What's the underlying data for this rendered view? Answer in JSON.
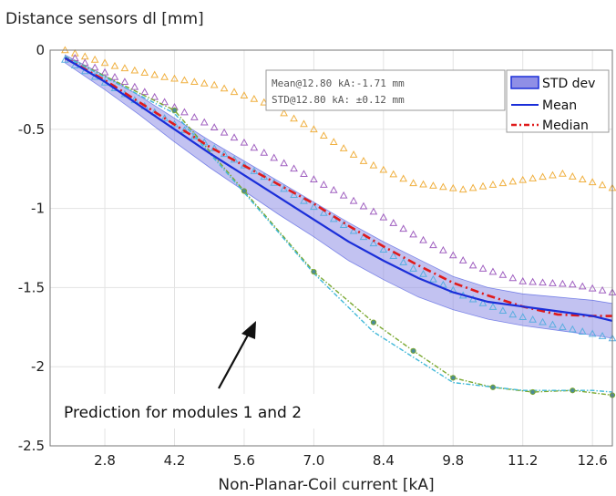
{
  "chart_data": {
    "type": "line",
    "title": "Distance sensors dl [mm]",
    "xlabel": "Non-Planar-Coil current [kA]",
    "ylabel": "",
    "xlim": [
      1.7,
      13.0
    ],
    "ylim": [
      -2.5,
      0
    ],
    "xticks": [
      2.8,
      4.2,
      5.6,
      7.0,
      8.4,
      9.8,
      11.2,
      12.6
    ],
    "xtick_labels": [
      "2.8",
      "4.2",
      "5.6",
      "7.0",
      "8.4",
      "9.8",
      "11.2",
      "12.6"
    ],
    "yticks": [
      0,
      -0.5,
      -1,
      -1.5,
      -2,
      -2.5
    ],
    "ytick_labels": [
      "0",
      "-0.5",
      "-1",
      "-1.5",
      "-2",
      "-2.5"
    ],
    "grid": true,
    "legend_position": "top-right",
    "stats_box": {
      "line1": "Mean@12.80 kA:-1.71 mm",
      "line2": "STD@12.80 kA: ±0.12 mm"
    },
    "annotation": "Prediction for modules 1 and 2",
    "legend": {
      "std": "STD dev",
      "mean": "Mean",
      "median": "Median"
    },
    "colors": {
      "band": "#8f8fe6",
      "mean": "#1a2ed9",
      "median": "#e01a1a",
      "orange": "#f0b040",
      "purple": "#a060c0",
      "lightblue": "#5aaee0",
      "green": "#7aa830",
      "cyan": "#40b8d8"
    },
    "series": [
      {
        "key": "std_band",
        "x": [
          2.0,
          2.8,
          3.5,
          4.2,
          4.9,
          5.6,
          6.3,
          7.0,
          7.7,
          8.4,
          9.1,
          9.8,
          10.5,
          11.2,
          11.9,
          12.6,
          13.0
        ],
        "upper": [
          -0.03,
          -0.16,
          -0.29,
          -0.43,
          -0.57,
          -0.7,
          -0.83,
          -0.96,
          -1.09,
          -1.21,
          -1.32,
          -1.43,
          -1.5,
          -1.54,
          -1.56,
          -1.58,
          -1.6
        ],
        "lower": [
          -0.08,
          -0.25,
          -0.41,
          -0.58,
          -0.74,
          -0.89,
          -1.04,
          -1.18,
          -1.33,
          -1.45,
          -1.56,
          -1.64,
          -1.7,
          -1.74,
          -1.77,
          -1.8,
          -1.82
        ]
      },
      {
        "key": "mean",
        "x": [
          2.0,
          2.8,
          3.5,
          4.2,
          4.9,
          5.6,
          6.3,
          7.0,
          7.7,
          8.4,
          9.1,
          9.8,
          10.5,
          11.2,
          11.9,
          12.6,
          13.0
        ],
        "y": [
          -0.05,
          -0.2,
          -0.35,
          -0.5,
          -0.65,
          -0.79,
          -0.93,
          -1.07,
          -1.21,
          -1.33,
          -1.44,
          -1.53,
          -1.59,
          -1.62,
          -1.65,
          -1.68,
          -1.71
        ]
      },
      {
        "key": "median",
        "x": [
          2.0,
          2.8,
          3.5,
          4.2,
          4.9,
          5.6,
          6.3,
          7.0,
          7.7,
          8.4,
          9.1,
          9.8,
          10.5,
          11.2,
          11.9,
          12.6,
          13.0
        ],
        "y": [
          -0.05,
          -0.19,
          -0.33,
          -0.47,
          -0.61,
          -0.73,
          -0.85,
          -0.97,
          -1.11,
          -1.24,
          -1.36,
          -1.47,
          -1.55,
          -1.62,
          -1.67,
          -1.68,
          -1.68
        ]
      },
      {
        "key": "orange",
        "x": [
          2.0,
          3.0,
          4.0,
          5.0,
          6.0,
          7.0,
          8.0,
          9.0,
          10.0,
          11.0,
          12.0,
          13.0
        ],
        "y": [
          0.0,
          -0.1,
          -0.17,
          -0.22,
          -0.33,
          -0.5,
          -0.7,
          -0.84,
          -0.88,
          -0.83,
          -0.78,
          -0.87
        ]
      },
      {
        "key": "purple",
        "x": [
          2.2,
          3.2,
          4.2,
          5.2,
          6.2,
          7.2,
          8.2,
          9.2,
          10.2,
          11.2,
          12.2,
          13.0
        ],
        "y": [
          -0.05,
          -0.2,
          -0.36,
          -0.52,
          -0.68,
          -0.85,
          -1.02,
          -1.2,
          -1.36,
          -1.46,
          -1.48,
          -1.53
        ]
      },
      {
        "key": "lightblue",
        "x": [
          2.0,
          3.0,
          4.0,
          5.0,
          6.0,
          7.0,
          8.0,
          9.0,
          10.0,
          11.0,
          12.0,
          13.0
        ],
        "y": [
          -0.06,
          -0.24,
          -0.43,
          -0.62,
          -0.8,
          -0.99,
          -1.18,
          -1.38,
          -1.55,
          -1.67,
          -1.75,
          -1.82
        ]
      },
      {
        "key": "green",
        "x": [
          2.0,
          4.2,
          5.6,
          7.0,
          8.2,
          9.0,
          9.8,
          10.6,
          11.4,
          12.2,
          13.0
        ],
        "y": [
          -0.04,
          -0.38,
          -0.89,
          -1.4,
          -1.72,
          -1.9,
          -2.07,
          -2.13,
          -2.16,
          -2.15,
          -2.18
        ]
      },
      {
        "key": "cyan",
        "x": [
          2.0,
          4.2,
          5.6,
          7.0,
          8.2,
          9.8,
          11.2,
          12.6,
          13.0
        ],
        "y": [
          -0.04,
          -0.4,
          -0.9,
          -1.41,
          -1.78,
          -2.1,
          -2.15,
          -2.15,
          -2.16
        ]
      }
    ]
  }
}
